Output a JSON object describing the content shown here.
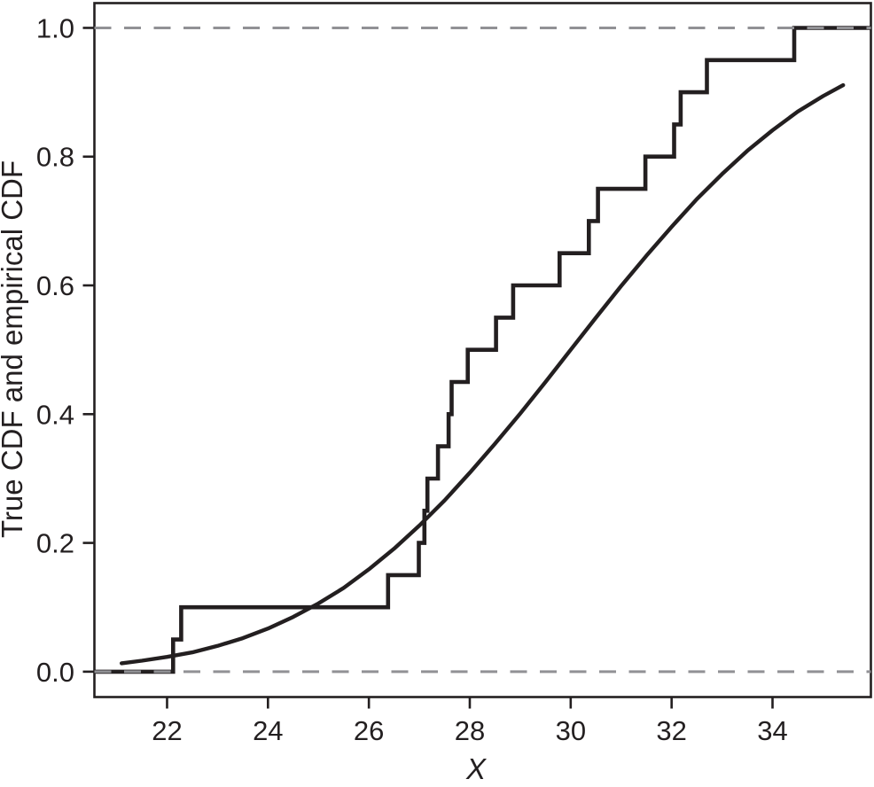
{
  "figure": {
    "background_color": "#ffffff",
    "line_color": "#231f20",
    "text_color": "#231f20",
    "reference_line_color": "#919195"
  },
  "chart_data": {
    "type": "line",
    "title": "",
    "xlabel": "X",
    "ylabel": "True CDF and empirical CDF",
    "xlim": [
      20.56,
      35.95
    ],
    "ylim": [
      -0.0394,
      1.0385
    ],
    "grid": false,
    "legend_visible": false,
    "frame": "closed-box",
    "x_ticks": [
      {
        "value": 22,
        "label": "22"
      },
      {
        "value": 24,
        "label": "24"
      },
      {
        "value": 26,
        "label": "26"
      },
      {
        "value": 28,
        "label": "28"
      },
      {
        "value": 30,
        "label": "30"
      },
      {
        "value": 32,
        "label": "32"
      },
      {
        "value": 34,
        "label": "34"
      }
    ],
    "y_ticks": [
      {
        "value": 0.0,
        "label": "0.0"
      },
      {
        "value": 0.2,
        "label": "0.2"
      },
      {
        "value": 0.4,
        "label": "0.4"
      },
      {
        "value": 0.6,
        "label": "0.6"
      },
      {
        "value": 0.8,
        "label": "0.8"
      },
      {
        "value": 1.0,
        "label": "1.0"
      }
    ],
    "reference_lines": {
      "y_values": [
        0.0,
        1.0
      ],
      "style": "dashed",
      "color": "#919195"
    },
    "series": [
      {
        "name": "true-cdf",
        "type": "smooth-line",
        "description": "True CDF (smooth curve)",
        "color": "#231f20",
        "points": [
          [
            21.1,
            0.013
          ],
          [
            21.5,
            0.017
          ],
          [
            22.0,
            0.023
          ],
          [
            22.5,
            0.03
          ],
          [
            23.0,
            0.04
          ],
          [
            23.5,
            0.052
          ],
          [
            24.0,
            0.067
          ],
          [
            24.5,
            0.085
          ],
          [
            25.0,
            0.106
          ],
          [
            25.5,
            0.13
          ],
          [
            26.0,
            0.159
          ],
          [
            26.5,
            0.191
          ],
          [
            27.0,
            0.227
          ],
          [
            27.5,
            0.266
          ],
          [
            28.0,
            0.309
          ],
          [
            28.5,
            0.354
          ],
          [
            29.0,
            0.401
          ],
          [
            29.5,
            0.45
          ],
          [
            30.0,
            0.5
          ],
          [
            30.5,
            0.55
          ],
          [
            31.0,
            0.599
          ],
          [
            31.5,
            0.646
          ],
          [
            32.0,
            0.691
          ],
          [
            32.5,
            0.734
          ],
          [
            33.0,
            0.773
          ],
          [
            33.5,
            0.809
          ],
          [
            34.0,
            0.841
          ],
          [
            34.5,
            0.87
          ],
          [
            35.0,
            0.894
          ],
          [
            35.4,
            0.911
          ]
        ]
      },
      {
        "name": "empirical-cdf",
        "type": "step",
        "description": "Empirical CDF (step function, n=20, step 0.05)",
        "color": "#231f20",
        "n": 20,
        "step_size": 0.05,
        "start_level": 0.0,
        "end_level": 1.0,
        "sorted_samples": [
          22.12,
          22.28,
          26.38,
          26.99,
          27.1,
          27.16,
          27.37,
          27.58,
          27.64,
          27.96,
          28.52,
          28.86,
          29.78,
          30.36,
          30.54,
          31.48,
          32.05,
          32.18,
          32.7,
          34.43
        ]
      }
    ]
  }
}
